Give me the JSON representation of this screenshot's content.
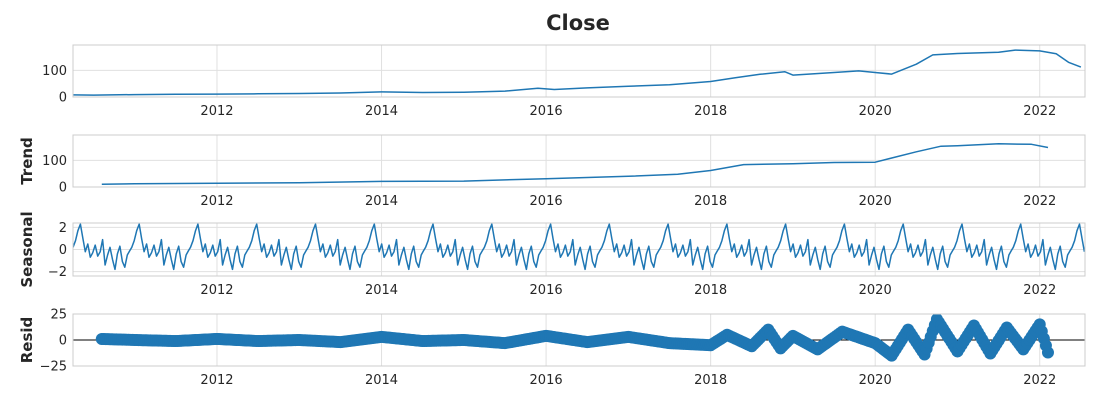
{
  "chart_data": {
    "type": "line",
    "title": "Close",
    "color": "#1f77b4",
    "x_ticks": [
      "2012",
      "2014",
      "2016",
      "2018",
      "2020",
      "2022"
    ],
    "xlim": [
      2010.25,
      2022.55
    ],
    "grid": true,
    "panels": [
      {
        "name": "observed",
        "ylabel": "",
        "ylim": [
          0,
          195
        ],
        "yticks": [
          0,
          100
        ],
        "ytick_labels": [
          "0",
          "100"
        ],
        "line_width": 1.5,
        "x": [
          2010.25,
          2010.5,
          2011.0,
          2011.5,
          2012.0,
          2012.5,
          2013.0,
          2013.5,
          2014.0,
          2014.5,
          2015.0,
          2015.5,
          2015.9,
          2016.1,
          2016.5,
          2017.0,
          2017.5,
          2018.0,
          2018.3,
          2018.6,
          2018.9,
          2019.0,
          2019.5,
          2019.8,
          2020.0,
          2020.2,
          2020.5,
          2020.7,
          2021.0,
          2021.5,
          2021.7,
          2022.0,
          2022.2,
          2022.35,
          2022.5
        ],
        "y": [
          8,
          7,
          9,
          10,
          11,
          12,
          13,
          15,
          19,
          17,
          18,
          22,
          33,
          28,
          34,
          40,
          46,
          58,
          72,
          85,
          95,
          82,
          92,
          98,
          92,
          86,
          123,
          158,
          163,
          168,
          176,
          173,
          162,
          130,
          112
        ]
      },
      {
        "name": "trend",
        "ylabel": "Trend",
        "ylim": [
          0,
          195
        ],
        "yticks": [
          0,
          100
        ],
        "ytick_labels": [
          "0",
          "100"
        ],
        "line_width": 1.5,
        "x": [
          2010.6,
          2011.0,
          2012.0,
          2013.0,
          2014.0,
          2015.0,
          2016.0,
          2017.0,
          2017.6,
          2018.0,
          2018.4,
          2019.0,
          2019.5,
          2020.0,
          2020.5,
          2020.8,
          2021.0,
          2021.5,
          2021.9,
          2022.1
        ],
        "y": [
          10,
          12,
          14,
          16,
          21,
          22,
          31,
          40,
          48,
          62,
          84,
          87,
          92,
          93,
          132,
          153,
          155,
          162,
          160,
          148
        ]
      },
      {
        "name": "seasonal",
        "ylabel": "Seasonal",
        "ylim": [
          -2.4,
          2.4
        ],
        "yticks": [
          -2,
          0,
          2
        ],
        "ytick_labels": [
          "−2",
          "0",
          "2"
        ],
        "line_width": 1.5,
        "period_years": 0.7143,
        "x": [
          0.0,
          0.03,
          0.06,
          0.09,
          0.12,
          0.15,
          0.18,
          0.21,
          0.24,
          0.27,
          0.3,
          0.33,
          0.36,
          0.39,
          0.42,
          0.45,
          0.48,
          0.51,
          0.54,
          0.57,
          0.6,
          0.63,
          0.66,
          0.69,
          0.7143
        ],
        "y": [
          0.2,
          0.8,
          1.7,
          2.3,
          1.0,
          -0.2,
          0.5,
          -0.7,
          -0.3,
          0.4,
          -0.6,
          -0.2,
          0.9,
          -1.4,
          -0.5,
          0.2,
          -0.9,
          -1.8,
          -0.4,
          0.3,
          -1.1,
          -1.6,
          -0.5,
          -0.1,
          0.2
        ]
      },
      {
        "name": "resid",
        "ylabel": "Resid",
        "ylim": [
          -25,
          25
        ],
        "yticks": [
          -25,
          0,
          25
        ],
        "ytick_labels": [
          "−25",
          "0",
          "25"
        ],
        "marker_size": 6,
        "zero_line": true,
        "x": [
          2010.6,
          2011.0,
          2011.5,
          2012.0,
          2012.5,
          2013.0,
          2013.5,
          2014.0,
          2014.5,
          2015.0,
          2015.5,
          2016.0,
          2016.5,
          2017.0,
          2017.5,
          2018.0,
          2018.2,
          2018.5,
          2018.7,
          2018.85,
          2019.0,
          2019.3,
          2019.6,
          2020.0,
          2020.2,
          2020.4,
          2020.6,
          2020.75,
          2021.0,
          2021.2,
          2021.4,
          2021.6,
          2021.8,
          2022.0,
          2022.1
        ],
        "y": [
          1,
          0,
          -1,
          1,
          -1,
          0,
          -2,
          3,
          -1,
          0,
          -3,
          4,
          -2,
          3,
          -3,
          -5,
          5,
          -6,
          10,
          -8,
          4,
          -9,
          8,
          -3,
          -15,
          10,
          -14,
          20,
          -11,
          14,
          -13,
          12,
          -9,
          15,
          -12
        ]
      }
    ]
  }
}
